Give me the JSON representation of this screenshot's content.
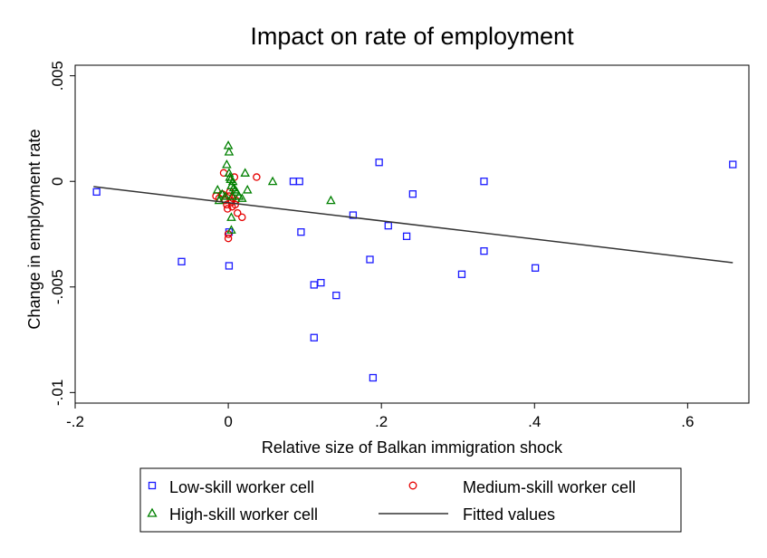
{
  "chart_data": {
    "type": "scatter",
    "title": "Impact on rate of employment",
    "xlabel": "Relative size of Balkan immigration shock",
    "ylabel": "Change in employment rate",
    "xlim": [
      -0.2,
      0.68
    ],
    "ylim": [
      -0.0105,
      0.0055
    ],
    "x_ticks": [
      {
        "value": -0.2,
        "label": "-.2"
      },
      {
        "value": 0,
        "label": "0"
      },
      {
        "value": 0.2,
        "label": ".2"
      },
      {
        "value": 0.4,
        "label": ".4"
      },
      {
        "value": 0.6,
        "label": ".6"
      }
    ],
    "y_ticks": [
      {
        "value": 0.005,
        "label": ".005"
      },
      {
        "value": 0,
        "label": "0"
      },
      {
        "value": -0.005,
        "label": "-.005"
      },
      {
        "value": -0.01,
        "label": "-.01"
      }
    ],
    "grid": false,
    "legend_position": "bottom",
    "series": [
      {
        "name": "Low-skill worker cell",
        "marker": "square",
        "color": "#1a1aff",
        "points": [
          [
            -0.172,
            -0.0005
          ],
          [
            -0.061,
            -0.0038
          ],
          [
            0.001,
            -0.0024
          ],
          [
            0.001,
            -0.004
          ],
          [
            0.085,
            0.0
          ],
          [
            0.093,
            0.0
          ],
          [
            0.095,
            -0.0024
          ],
          [
            0.112,
            -0.0049
          ],
          [
            0.112,
            -0.0074
          ],
          [
            0.121,
            -0.0048
          ],
          [
            0.141,
            -0.0054
          ],
          [
            0.163,
            -0.0016
          ],
          [
            0.185,
            -0.0037
          ],
          [
            0.189,
            -0.0093
          ],
          [
            0.197,
            0.0009
          ],
          [
            0.209,
            -0.0021
          ],
          [
            0.233,
            -0.0026
          ],
          [
            0.241,
            -0.0006
          ],
          [
            0.305,
            -0.0044
          ],
          [
            0.334,
            0.0
          ],
          [
            0.334,
            -0.0033
          ],
          [
            0.401,
            -0.0041
          ],
          [
            0.659,
            0.0008
          ]
        ]
      },
      {
        "name": "Medium-skill worker cell",
        "marker": "circle",
        "color": "#e60000",
        "points": [
          [
            -0.016,
            -0.0007
          ],
          [
            -0.012,
            -0.0008
          ],
          [
            -0.008,
            -0.0006
          ],
          [
            -0.006,
            0.0004
          ],
          [
            -0.004,
            -0.0009
          ],
          [
            -0.002,
            -0.0011
          ],
          [
            -0.001,
            -0.0013
          ],
          [
            0.0,
            -0.0027
          ],
          [
            0.0,
            -0.0025
          ],
          [
            0.001,
            -0.0007
          ],
          [
            0.002,
            -0.0005
          ],
          [
            0.003,
            -0.0009
          ],
          [
            0.004,
            -0.001
          ],
          [
            0.005,
            -0.0012
          ],
          [
            0.006,
            -0.0008
          ],
          [
            0.008,
            0.0002
          ],
          [
            0.009,
            -0.0011
          ],
          [
            0.01,
            -0.0009
          ],
          [
            0.012,
            -0.0015
          ],
          [
            0.018,
            -0.0017
          ],
          [
            0.037,
            0.0002
          ]
        ]
      },
      {
        "name": "High-skill worker cell",
        "marker": "triangle",
        "color": "#008000",
        "points": [
          [
            -0.014,
            -0.0004
          ],
          [
            -0.012,
            -0.0009
          ],
          [
            -0.008,
            -0.0006
          ],
          [
            -0.004,
            -0.0007
          ],
          [
            -0.002,
            0.0008
          ],
          [
            0.0,
            0.0017
          ],
          [
            0.001,
            0.0014
          ],
          [
            0.001,
            0.0004
          ],
          [
            0.002,
            0.0002
          ],
          [
            0.003,
            0.0001
          ],
          [
            0.004,
            -0.0002
          ],
          [
            0.004,
            -0.0017
          ],
          [
            0.004,
            -0.0023
          ],
          [
            0.005,
            -0.0007
          ],
          [
            0.006,
            0.0
          ],
          [
            0.007,
            -0.0003
          ],
          [
            0.009,
            -0.0004
          ],
          [
            0.011,
            -0.0005
          ],
          [
            0.014,
            -0.0007
          ],
          [
            0.018,
            -0.0008
          ],
          [
            0.022,
            0.0004
          ],
          [
            0.025,
            -0.0004
          ],
          [
            0.058,
            0.0
          ],
          [
            0.134,
            -0.0009
          ]
        ]
      },
      {
        "name": "Fitted values",
        "marker": "line",
        "color": "#333333",
        "points": [
          [
            -0.176,
            -0.00025
          ],
          [
            0.659,
            -0.00385
          ]
        ]
      }
    ]
  }
}
